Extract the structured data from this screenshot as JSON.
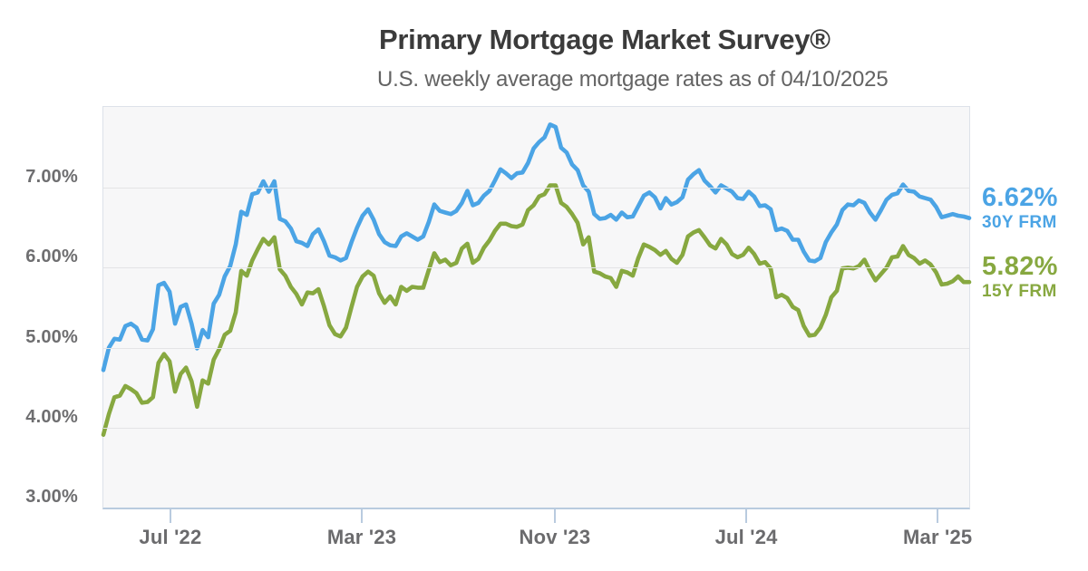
{
  "header": {
    "title": "Primary Mortgage Market Survey®",
    "subtitle": "U.S. weekly average mortgage rates as of 04/10/2025"
  },
  "colors": {
    "series_30y_blue": "#4BA4E5",
    "series_15y_green": "#87A840",
    "plot_background": "#f7f7f8",
    "gridline": "#e4e4e6",
    "axis": "#b9cbdf",
    "axis_label": "#6b6b6d",
    "title_text": "#3b3b3b",
    "subtitle_text": "#636363"
  },
  "chart_data": {
    "type": "line",
    "title": "Primary Mortgage Market Survey®",
    "subtitle": "U.S. weekly average mortgage rates as of 04/10/2025",
    "as_of": "04/10/2025",
    "cadence": "weekly",
    "x_start": "2022-04-07",
    "x_end": "2025-04-10",
    "grid": true,
    "legend_position": "right",
    "ylim": [
      3,
      8.01
    ],
    "yticks": [
      {
        "value": 3,
        "label": "3.00%"
      },
      {
        "value": 4,
        "label": "4.00%"
      },
      {
        "value": 5,
        "label": "5.00%"
      },
      {
        "value": 6,
        "label": "6.00%"
      },
      {
        "value": 7,
        "label": "7.00%"
      }
    ],
    "xticks": [
      {
        "date": "2022-07-01",
        "label": "Jul '22"
      },
      {
        "date": "2023-03-01",
        "label": "Mar '23"
      },
      {
        "date": "2023-11-01",
        "label": "Nov '23"
      },
      {
        "date": "2024-07-01",
        "label": "Jul '24"
      },
      {
        "date": "2025-03-01",
        "label": "Mar '25"
      }
    ],
    "series": [
      {
        "name": "30Y FRM",
        "current_label": "6.62%",
        "current_value": 6.62,
        "color": "#4BA4E5",
        "values": [
          4.72,
          5.0,
          5.11,
          5.1,
          5.27,
          5.3,
          5.25,
          5.1,
          5.09,
          5.23,
          5.78,
          5.81,
          5.7,
          5.3,
          5.51,
          5.54,
          5.3,
          4.99,
          5.22,
          5.13,
          5.55,
          5.66,
          5.89,
          6.02,
          6.29,
          6.7,
          6.66,
          6.92,
          6.94,
          7.08,
          6.95,
          7.08,
          6.61,
          6.58,
          6.49,
          6.33,
          6.31,
          6.27,
          6.42,
          6.48,
          6.33,
          6.15,
          6.13,
          6.09,
          6.12,
          6.32,
          6.5,
          6.65,
          6.73,
          6.6,
          6.42,
          6.32,
          6.28,
          6.27,
          6.39,
          6.43,
          6.39,
          6.35,
          6.39,
          6.57,
          6.79,
          6.71,
          6.69,
          6.67,
          6.71,
          6.81,
          6.96,
          6.78,
          6.81,
          6.9,
          6.96,
          7.09,
          7.23,
          7.18,
          7.12,
          7.18,
          7.19,
          7.31,
          7.49,
          7.57,
          7.63,
          7.79,
          7.76,
          7.5,
          7.44,
          7.29,
          7.22,
          7.03,
          6.95,
          6.67,
          6.61,
          6.62,
          6.66,
          6.6,
          6.69,
          6.63,
          6.64,
          6.77,
          6.9,
          6.94,
          6.88,
          6.74,
          6.87,
          6.79,
          6.82,
          6.88,
          7.1,
          7.17,
          7.22,
          7.09,
          7.02,
          6.94,
          7.03,
          6.99,
          6.95,
          6.87,
          6.86,
          6.95,
          6.89,
          6.77,
          6.78,
          6.73,
          6.47,
          6.49,
          6.46,
          6.35,
          6.35,
          6.2,
          6.09,
          6.08,
          6.12,
          6.32,
          6.44,
          6.54,
          6.72,
          6.79,
          6.78,
          6.84,
          6.81,
          6.69,
          6.6,
          6.72,
          6.85,
          6.91,
          6.93,
          7.04,
          6.96,
          6.95,
          6.89,
          6.87,
          6.85,
          6.76,
          6.63,
          6.65,
          6.67,
          6.65,
          6.64,
          6.62
        ]
      },
      {
        "name": "15Y FRM",
        "current_label": "5.82%",
        "current_value": 5.82,
        "color": "#87A840",
        "values": [
          3.91,
          4.17,
          4.38,
          4.4,
          4.52,
          4.48,
          4.43,
          4.31,
          4.32,
          4.38,
          4.81,
          4.92,
          4.83,
          4.45,
          4.67,
          4.75,
          4.58,
          4.26,
          4.59,
          4.55,
          4.85,
          4.98,
          5.16,
          5.21,
          5.44,
          5.96,
          5.9,
          6.09,
          6.23,
          6.36,
          6.29,
          6.38,
          5.98,
          5.9,
          5.76,
          5.67,
          5.54,
          5.69,
          5.68,
          5.73,
          5.52,
          5.28,
          5.17,
          5.14,
          5.25,
          5.51,
          5.76,
          5.89,
          5.95,
          5.9,
          5.68,
          5.56,
          5.64,
          5.54,
          5.76,
          5.71,
          5.76,
          5.75,
          5.75,
          5.97,
          6.18,
          6.07,
          6.1,
          6.03,
          6.06,
          6.24,
          6.3,
          6.06,
          6.11,
          6.25,
          6.34,
          6.46,
          6.55,
          6.55,
          6.52,
          6.51,
          6.54,
          6.72,
          6.78,
          6.89,
          6.92,
          7.03,
          7.03,
          6.81,
          6.76,
          6.67,
          6.56,
          6.29,
          6.38,
          5.95,
          5.93,
          5.89,
          5.87,
          5.76,
          5.96,
          5.94,
          5.9,
          6.12,
          6.29,
          6.26,
          6.22,
          6.16,
          6.21,
          6.11,
          6.06,
          6.16,
          6.39,
          6.44,
          6.47,
          6.38,
          6.28,
          6.24,
          6.36,
          6.29,
          6.17,
          6.13,
          6.16,
          6.25,
          6.17,
          6.05,
          6.07,
          5.99,
          5.63,
          5.66,
          5.62,
          5.51,
          5.47,
          5.27,
          5.15,
          5.16,
          5.25,
          5.41,
          5.63,
          5.71,
          5.99,
          6.0,
          5.99,
          6.02,
          6.1,
          5.96,
          5.84,
          5.92,
          6.0,
          6.13,
          6.14,
          6.27,
          6.16,
          6.12,
          6.05,
          6.09,
          6.04,
          5.94,
          5.79,
          5.8,
          5.83,
          5.89,
          5.82,
          5.82
        ]
      }
    ]
  }
}
